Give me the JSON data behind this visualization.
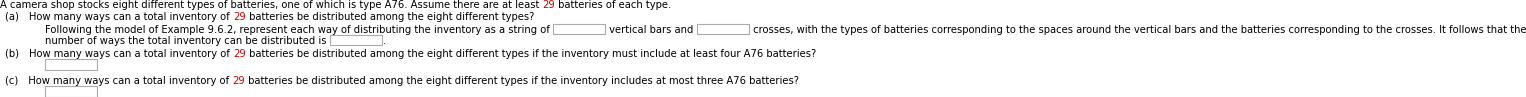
{
  "black": "#000000",
  "red": "#cc0000",
  "white": "#ffffff",
  "box_edge": "#aaaaaa",
  "font_size": 7.2,
  "font_family": "DejaVu Sans",
  "line1": "A camera shop stocks eight different types of batteries, one of which is type A76. Assume there are at least |29| batteries of each type.",
  "line_a": "(a) How many ways can a total inventory of |29| batteries be distributed among the eight different types?",
  "line_f1a": "Following the model of Example 9.6.2, represent each way of distributing the inventory as a string of ",
  "line_f1b": " vertical bars and ",
  "line_f1c": " crosses, with the types of batteries corresponding to the spaces around the vertical bars and the batteries corresponding to the crosses. It follows that the",
  "line_f2a": "number of ways the total inventory can be distributed is ",
  "line_f2b": ".",
  "line_b": "(b) How many ways can a total inventory of |29| batteries be distributed among the eight different types if the inventory must include at least four A76 batteries?",
  "line_c": "(c) How many ways can a total inventory of |29| batteries be distributed among the eight different types if the inventory includes at most three A76 batteries?"
}
